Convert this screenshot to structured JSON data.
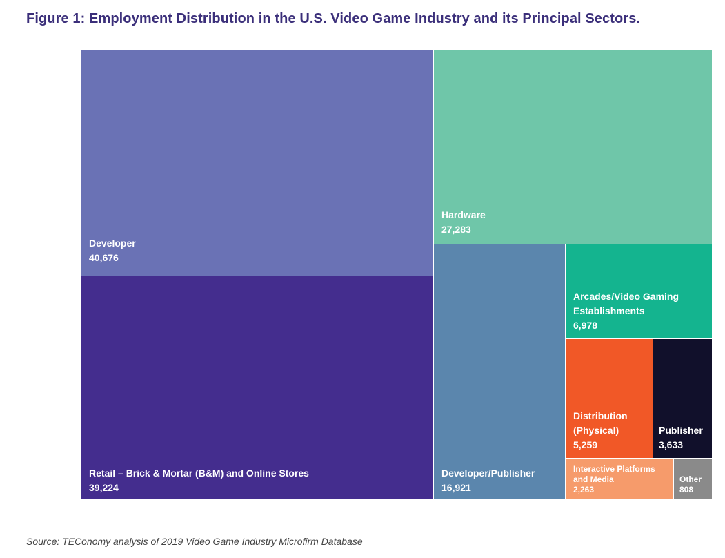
{
  "chart_data": {
    "type": "treemap",
    "title": "Figure 1: Employment Distribution in the U.S. Video Game Industry and its Principal Sectors.",
    "source": "Source: TEConomy analysis of 2019 Video Game Industry Microfirm Database",
    "cells": [
      {
        "key": "developer",
        "name": "Developer",
        "value": 40676,
        "label_value": "40,676",
        "color": "#6a72b5"
      },
      {
        "key": "retail",
        "name": "Retail – Brick & Mortar (B&M) and Online Stores",
        "value": 39224,
        "label_value": "39,224",
        "color": "#442d8e"
      },
      {
        "key": "hardware",
        "name": "Hardware",
        "value": 27283,
        "label_value": "27,283",
        "color": "#6fc6a9"
      },
      {
        "key": "developer_publisher",
        "name": "Developer/Publisher",
        "value": 16921,
        "label_value": "16,921",
        "color": "#5b86ad"
      },
      {
        "key": "arcades",
        "name": "Arcades/Video Gaming Establishments",
        "value": 6978,
        "label_value": "6,978",
        "color": "#14b48f"
      },
      {
        "key": "distribution",
        "name": "Distribution (Physical)",
        "value": 5259,
        "label_value": "5,259",
        "color": "#f15827"
      },
      {
        "key": "publisher",
        "name": "Publisher",
        "value": 3633,
        "label_value": "3,633",
        "color": "#11102b"
      },
      {
        "key": "interactive",
        "name": "Interactive Platforms and Media",
        "value": 2263,
        "label_value": "2,263",
        "color": "#f69b6b"
      },
      {
        "key": "other",
        "name": "Other",
        "value": 808,
        "label_value": "808",
        "color": "#8a8a8a"
      }
    ]
  }
}
